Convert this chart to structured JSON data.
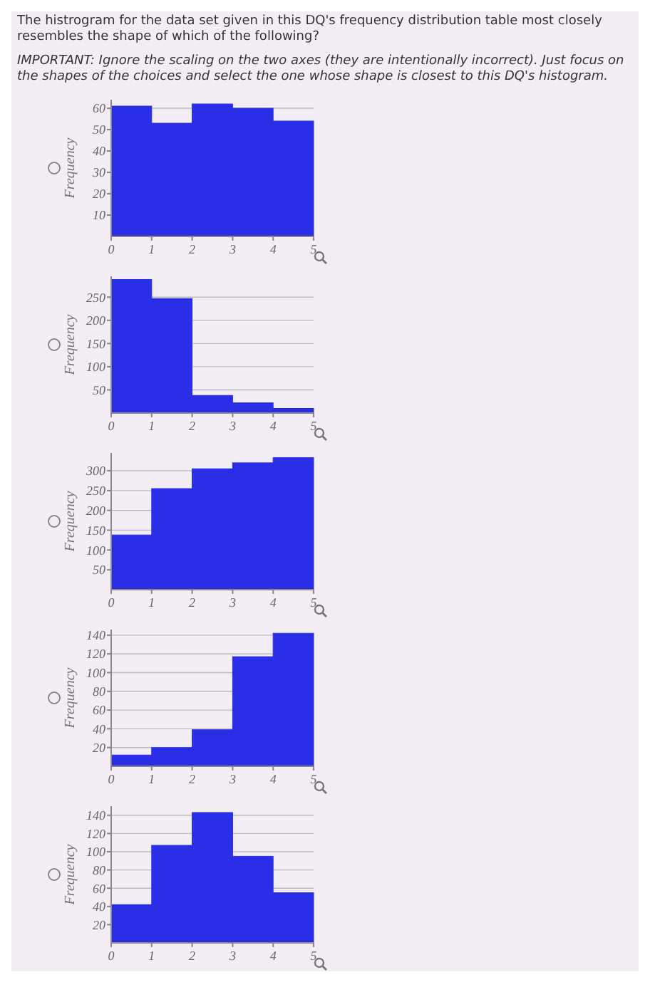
{
  "chart_data": [
    {
      "type": "histogram",
      "title": "The histrogram for the data set given in this DQ's frequency distribution table most closely resembles the shape of which of the following?",
      "subtitle": "IMPORTANT: Ignore the scaling on the two axes (they are intentionally incorrect). Just focus on the shapes of the choices and select the one whose shape is closest to this DQ's histogram.",
      "ylabel": "Frequency",
      "bins": [
        0,
        1,
        2,
        3,
        4,
        5
      ],
      "values": [
        61,
        53,
        62,
        60,
        54
      ],
      "color": "#2a2ee6",
      "xlim": [
        0,
        5
      ],
      "xticks": [
        0,
        1,
        2,
        3,
        4,
        5
      ],
      "ylim": [
        0,
        64
      ],
      "yticks": [
        10,
        20,
        30,
        40,
        50,
        60
      ],
      "grid": "y"
    },
    {
      "type": "histogram",
      "ylabel": "Frequency",
      "bins": [
        0,
        1,
        2,
        3,
        4,
        5
      ],
      "values": [
        288,
        247,
        38,
        22,
        10
      ],
      "color": "#2a2ee6",
      "xlim": [
        0,
        5
      ],
      "xticks": [
        0,
        1,
        2,
        3,
        4,
        5
      ],
      "ylim": [
        0,
        295
      ],
      "yticks": [
        50,
        100,
        150,
        200,
        250
      ],
      "grid": "y"
    },
    {
      "type": "histogram",
      "ylabel": "Frequency",
      "bins": [
        0,
        1,
        2,
        3,
        4,
        5
      ],
      "values": [
        138,
        255,
        305,
        320,
        333
      ],
      "color": "#2a2ee6",
      "xlim": [
        0,
        5
      ],
      "xticks": [
        0,
        1,
        2,
        3,
        4,
        5
      ],
      "ylim": [
        0,
        345
      ],
      "yticks": [
        50,
        100,
        150,
        200,
        250,
        300
      ],
      "grid": "y"
    },
    {
      "type": "histogram",
      "ylabel": "Frequency",
      "bins": [
        0,
        1,
        2,
        3,
        4,
        5
      ],
      "values": [
        12,
        20,
        39,
        117,
        142
      ],
      "color": "#2a2ee6",
      "xlim": [
        0,
        5
      ],
      "xticks": [
        0,
        1,
        2,
        3,
        4,
        5
      ],
      "ylim": [
        0,
        146
      ],
      "yticks": [
        20,
        40,
        60,
        80,
        100,
        120,
        140
      ],
      "grid": "y"
    },
    {
      "type": "histogram",
      "ylabel": "Frequency",
      "bins": [
        0,
        1,
        2,
        3,
        4,
        5
      ],
      "values": [
        42,
        107,
        143,
        95,
        55
      ],
      "color": "#2a2ee6",
      "xlim": [
        0,
        5
      ],
      "xticks": [
        0,
        1,
        2,
        3,
        4,
        5
      ],
      "ylim": [
        0,
        150
      ],
      "yticks": [
        20,
        40,
        60,
        80,
        100,
        120,
        140
      ],
      "grid": "y"
    }
  ]
}
